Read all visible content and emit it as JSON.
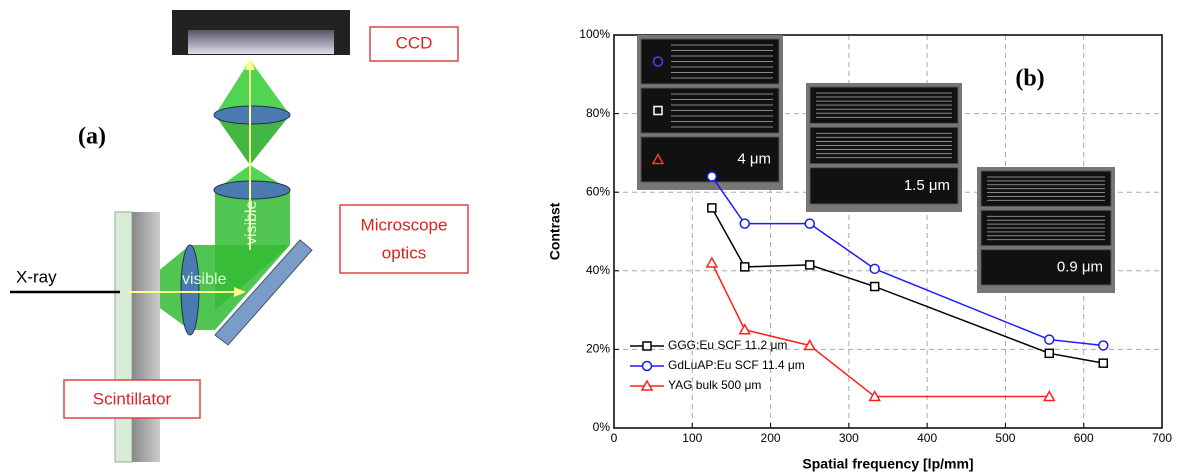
{
  "diagram": {
    "panel_label": "(a)",
    "ccd": "CCD",
    "optics": [
      "Microscope",
      "optics"
    ],
    "scintillator": "Scintillator",
    "xray": "X-ray",
    "visible_vertical": "visible",
    "visible_horizontal": "visible"
  },
  "chart_data": {
    "type": "line",
    "panel_label": "(b)",
    "x_label": "Spatial frequency [lp/mm]",
    "y_label": "Contrast",
    "xlim": [
      0,
      700
    ],
    "xticks": [
      0,
      100,
      200,
      300,
      400,
      500,
      600,
      700
    ],
    "ylim": [
      0,
      100
    ],
    "yticks": [
      {
        "value": 0,
        "label": "0%"
      },
      {
        "value": 20,
        "label": "20%"
      },
      {
        "value": 40,
        "label": "40%"
      },
      {
        "value": 60,
        "label": "60%"
      },
      {
        "value": 80,
        "label": "80%"
      },
      {
        "value": 100,
        "label": "100%"
      }
    ],
    "grid": true,
    "legend": "lower left",
    "series": [
      {
        "name": "GGG:Eu SCF 11.2 μm",
        "color": "#000000",
        "marker": "square",
        "x": [
          125,
          167,
          250,
          333,
          556,
          625
        ],
        "values": [
          56,
          41,
          41.5,
          36,
          19,
          16.5
        ]
      },
      {
        "name": "GdLuAP:Eu SCF 11.4 μm",
        "color": "#1a1aff",
        "marker": "circle",
        "x": [
          125,
          167,
          250,
          333,
          556,
          625
        ],
        "values": [
          64,
          52,
          52,
          40.5,
          22.5,
          21
        ]
      },
      {
        "name": "YAG bulk 500 μm",
        "color": "#ff2020",
        "marker": "triangle",
        "x": [
          125,
          167,
          250,
          333,
          556
        ],
        "values": [
          42,
          25,
          21,
          8,
          8
        ]
      }
    ],
    "annotations": [
      "4 μm",
      "1.5 μm",
      "0.9 μm"
    ]
  }
}
